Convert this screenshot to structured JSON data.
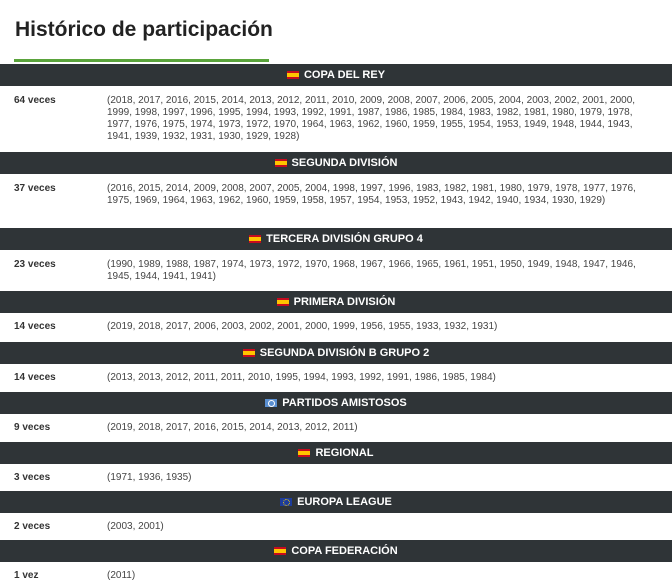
{
  "page_title": "Histórico de participación",
  "sections": [
    {
      "name": "COPA DEL REY",
      "flag": "spain-flag-icon",
      "count": "64 veces",
      "years": "(2018, 2017, 2016, 2015, 2014, 2013, 2012, 2011, 2010, 2009, 2008, 2007, 2006, 2005, 2004, 2003, 2002, 2001, 2000, 1999, 1998, 1997, 1996, 1995, 1994, 1993, 1992, 1991, 1987, 1986, 1985, 1984, 1983, 1982, 1981, 1980, 1979, 1978, 1977, 1976, 1975, 1974, 1973, 1972, 1970, 1964, 1963, 1962, 1960, 1959, 1955, 1954, 1953, 1949, 1948, 1944, 1943, 1941, 1939, 1932, 1931, 1930, 1929, 1928)"
    },
    {
      "name": "SEGUNDA DIVISIÓN",
      "flag": "spain-flag-icon",
      "count": "37 veces",
      "years": "(2016, 2015, 2014, 2009, 2008, 2007, 2005, 2004, 1998, 1997, 1996, 1983, 1982, 1981, 1980, 1979, 1978, 1977, 1976, 1975, 1969, 1964, 1963, 1962, 1960, 1959, 1958, 1957, 1954, 1953, 1952, 1943, 1942, 1940, 1934, 1930, 1929)"
    },
    {
      "name": "TERCERA DIVISIÓN GRUPO 4",
      "flag": "spain-flag-icon",
      "count": "23 veces",
      "years": "(1990, 1989, 1988, 1987, 1974, 1973, 1972, 1970, 1968, 1967, 1966, 1965, 1961, 1951, 1950, 1949, 1948, 1947, 1946, 1945, 1944, 1941, 1941)"
    },
    {
      "name": "PRIMERA DIVISIÓN",
      "flag": "spain-flag-icon",
      "count": "14 veces",
      "years": "(2019, 2018, 2017, 2006, 2003, 2002, 2001, 2000, 1999, 1956, 1955, 1933, 1932, 1931)"
    },
    {
      "name": "SEGUNDA DIVISIÓN B GRUPO 2",
      "flag": "spain-flag-icon",
      "count": "14 veces",
      "years": "(2013, 2013, 2012, 2011, 2011, 2010, 1995, 1994, 1993, 1992, 1991, 1986, 1985, 1984)"
    },
    {
      "name": "PARTIDOS AMISTOSOS",
      "flag": "world-flag-icon",
      "count": "9 veces",
      "years": "(2019, 2018, 2017, 2016, 2015, 2014, 2013, 2012, 2011)"
    },
    {
      "name": "REGIONAL",
      "flag": "spain-flag-icon",
      "count": "3 veces",
      "years": "(1971, 1936, 1935)"
    },
    {
      "name": "EUROPA LEAGUE",
      "flag": "eu-flag-icon",
      "count": "2 veces",
      "years": "(2003, 2001)"
    },
    {
      "name": "COPA FEDERACIÓN",
      "flag": "spain-flag-icon",
      "count": "1 vez",
      "years": "(2011)"
    }
  ]
}
